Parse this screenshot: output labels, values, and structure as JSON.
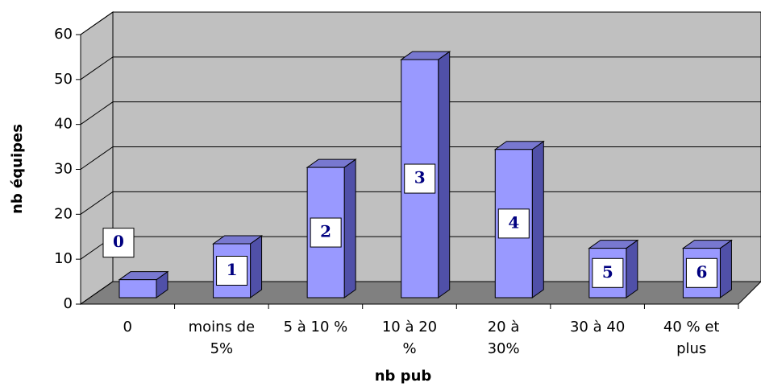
{
  "chart_data": {
    "type": "bar3d",
    "categories": [
      "0",
      "moins de 5%",
      "5 à 10 %",
      "10 à 20 %",
      "20 à 30%",
      "30 à 40",
      "40 % et plus"
    ],
    "category_lines": [
      [
        "0"
      ],
      [
        "moins de",
        "5%"
      ],
      [
        "5 à 10 %"
      ],
      [
        "10 à 20",
        "%"
      ],
      [
        "20 à",
        "30%"
      ],
      [
        "30 à 40"
      ],
      [
        "40 % et",
        "plus"
      ]
    ],
    "values": [
      4,
      12,
      29,
      53,
      33,
      11,
      11
    ],
    "bar_labels": [
      "0",
      "1",
      "2",
      "3",
      "4",
      "5",
      "6"
    ],
    "color": "#9999ff",
    "x_label": "nb pub",
    "y_label": "nb équipes",
    "ylim": [
      0,
      60
    ],
    "yticks": [
      0,
      10,
      20,
      30,
      40,
      50,
      60
    ],
    "grid": true
  }
}
